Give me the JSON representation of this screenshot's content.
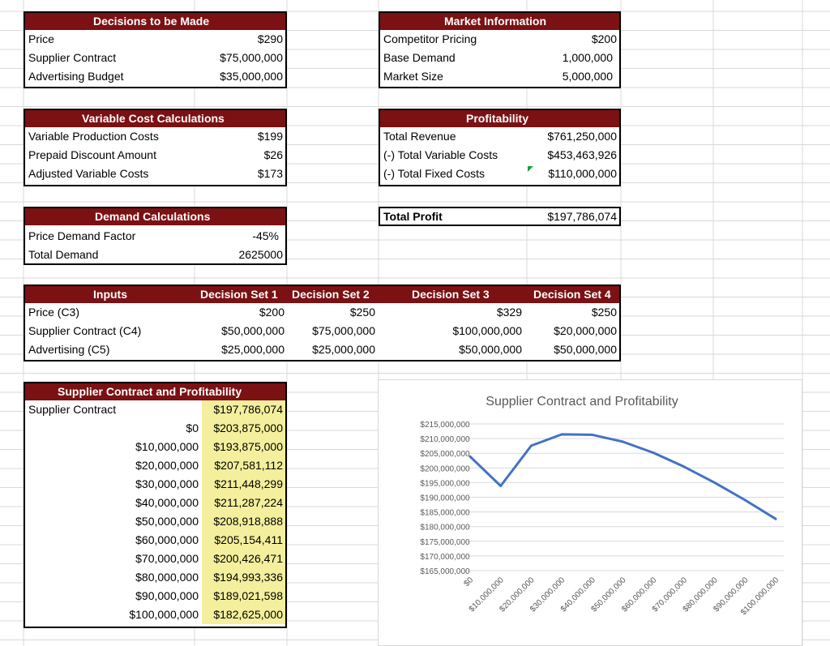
{
  "decisions": {
    "title": "Decisions to be Made",
    "rows": [
      {
        "label": "Price",
        "value": "$290"
      },
      {
        "label": "Supplier Contract",
        "value": "$75,000,000"
      },
      {
        "label": "Advertising Budget",
        "value": "$35,000,000"
      }
    ]
  },
  "market": {
    "title": "Market Information",
    "rows": [
      {
        "label": "Competitor Pricing",
        "value": "$200"
      },
      {
        "label": "Base Demand",
        "value": "1,000,000"
      },
      {
        "label": "Market Size",
        "value": "5,000,000"
      }
    ]
  },
  "variable_cost": {
    "title": "Variable Cost Calculations",
    "rows": [
      {
        "label": "Variable Production Costs",
        "value": "$199"
      },
      {
        "label": "Prepaid Discount Amount",
        "value": "$26"
      },
      {
        "label": "Adjusted Variable Costs",
        "value": "$173"
      }
    ]
  },
  "profitability": {
    "title": "Profitability",
    "rows": [
      {
        "label": "Total Revenue",
        "value": "$761,250,000"
      },
      {
        "label": "(-) Total Variable Costs",
        "value": "$453,463,926"
      },
      {
        "label": "(-) Total Fixed Costs",
        "value": "$110,000,000"
      }
    ],
    "total_label": "Total Profit",
    "total_value": "$197,786,074"
  },
  "demand": {
    "title": "Demand Calculations",
    "rows": [
      {
        "label": "Price Demand Factor",
        "value": "-45%"
      },
      {
        "label": "Total Demand",
        "value": "2625000"
      }
    ]
  },
  "inputs": {
    "header": {
      "label": "Inputs",
      "set1": "Decision Set 1",
      "set2": "Decision Set 2",
      "set3": "Decision Set 3",
      "set4": "Decision Set 4"
    },
    "rows": [
      {
        "label": "Price (C3)",
        "set1": "$200",
        "set2": "$250",
        "set3": "$329",
        "set4": "$250"
      },
      {
        "label": "Supplier Contract (C4)",
        "set1": "$50,000,000",
        "set2": "$75,000,000",
        "set3": "$100,000,000",
        "set4": "$20,000,000"
      },
      {
        "label": "Advertising (C5)",
        "set1": "$25,000,000",
        "set2": "$25,000,000",
        "set3": "$50,000,000",
        "set4": "$50,000,000"
      }
    ]
  },
  "data_table": {
    "title": "Supplier Contract and Profitability",
    "first_label": "Supplier Contract",
    "first_value": "$197,786,074",
    "rows": [
      {
        "contract": "$0",
        "profit": "$203,875,000"
      },
      {
        "contract": "$10,000,000",
        "profit": "$193,875,000"
      },
      {
        "contract": "$20,000,000",
        "profit": "$207,581,112"
      },
      {
        "contract": "$30,000,000",
        "profit": "$211,448,299"
      },
      {
        "contract": "$40,000,000",
        "profit": "$211,287,224"
      },
      {
        "contract": "$50,000,000",
        "profit": "$208,918,888"
      },
      {
        "contract": "$60,000,000",
        "profit": "$205,154,411"
      },
      {
        "contract": "$70,000,000",
        "profit": "$200,426,471"
      },
      {
        "contract": "$80,000,000",
        "profit": "$194,993,336"
      },
      {
        "contract": "$90,000,000",
        "profit": "$189,021,598"
      },
      {
        "contract": "$100,000,000",
        "profit": "$182,625,000"
      }
    ]
  },
  "colors": {
    "header_bg": "#7b1113",
    "highlight": "#f3ef9c",
    "line": "#4472c4",
    "fill_marker": "#1e9e3a"
  },
  "chart_data": {
    "type": "line",
    "title": "Supplier Contract and Profitability",
    "categories": [
      "$0",
      "$10,000,000",
      "$20,000,000",
      "$30,000,000",
      "$40,000,000",
      "$50,000,000",
      "$60,000,000",
      "$70,000,000",
      "$80,000,000",
      "$90,000,000",
      "$100,000,000"
    ],
    "values": [
      203875000,
      193875000,
      207581112,
      211448299,
      211287224,
      208918888,
      205154411,
      200426471,
      194993336,
      189021598,
      182625000
    ],
    "y_ticks": [
      "$215,000,000",
      "$210,000,000",
      "$205,000,000",
      "$200,000,000",
      "$195,000,000",
      "$190,000,000",
      "$185,000,000",
      "$180,000,000",
      "$175,000,000",
      "$170,000,000",
      "$165,000,000"
    ],
    "ylim": [
      165000000,
      215000000
    ],
    "grid": true,
    "legend": "none",
    "series_color": "#4472c4"
  }
}
